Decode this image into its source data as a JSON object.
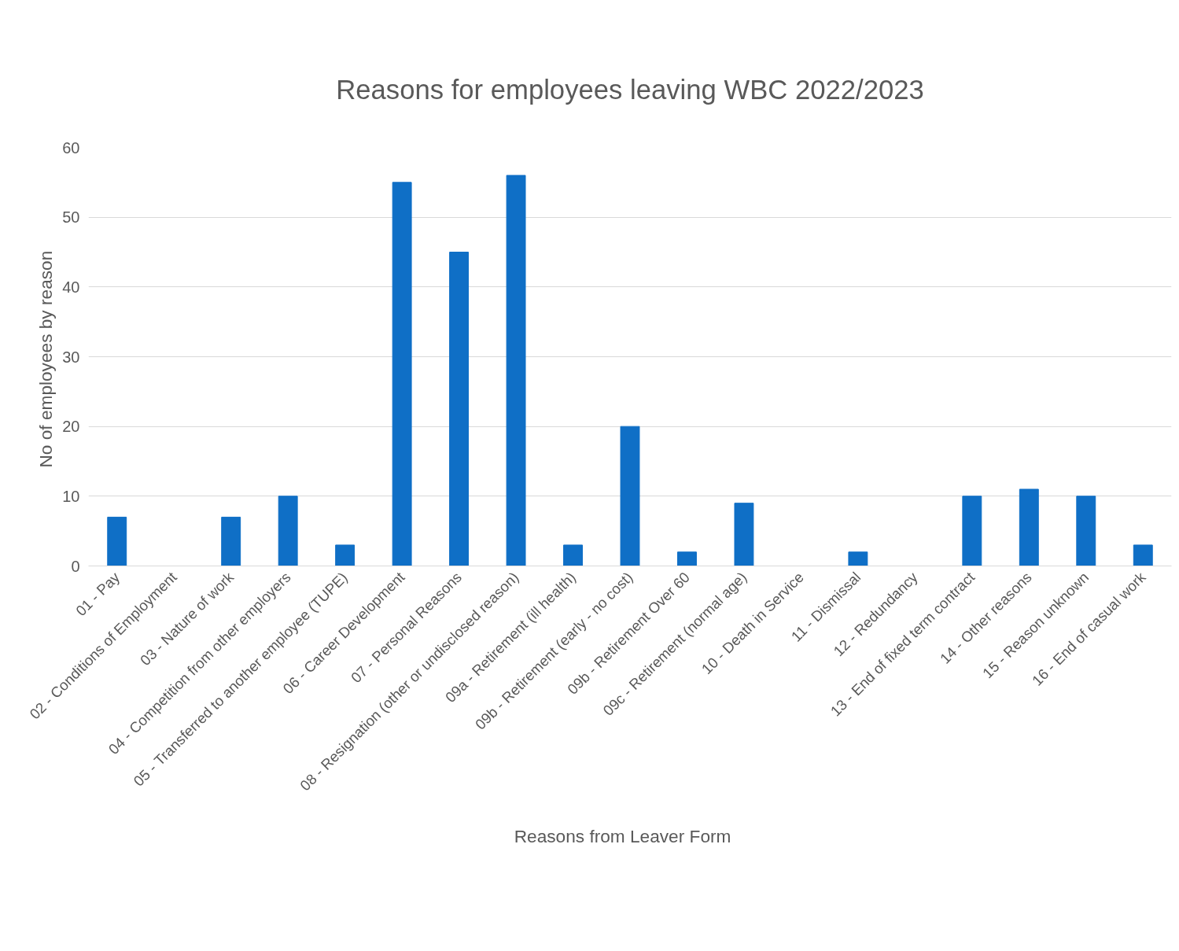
{
  "chart_data": {
    "type": "bar",
    "title": "Reasons for employees leaving WBC 2022/2023",
    "xlabel": "Reasons  from  Leaver  Form",
    "ylabel": "No of employees  by reason",
    "categories": [
      "01 - Pay",
      "02 - Conditions of Employment",
      "03 - Nature of work",
      "04 - Competition from other employers",
      "05 - Transferred to another employee (TUPE)",
      "06 - Career Development",
      "07 - Personal Reasons",
      "08 - Resignation (other or undisclosed reason)",
      "09a - Retirement (ill health)",
      "09b - Retirement (early - no cost)",
      "09b - Retirement Over 60",
      "09c - Retirement (normal age)",
      "10 - Death in Service",
      "11 - Dismissal",
      "12 - Redundancy",
      "13 - End of fixed term contract",
      "14 - Other reasons",
      "15 - Reason unknown",
      "16 - End of casual work"
    ],
    "values": [
      7,
      0,
      7,
      10,
      3,
      55,
      45,
      56,
      3,
      20,
      2,
      9,
      0,
      2,
      0,
      10,
      11,
      10,
      3
    ],
    "color": "#0f6fc6",
    "ylim": [
      0,
      60
    ],
    "yticks": [
      0,
      10,
      20,
      30,
      40,
      50,
      60
    ],
    "grid": "y"
  }
}
